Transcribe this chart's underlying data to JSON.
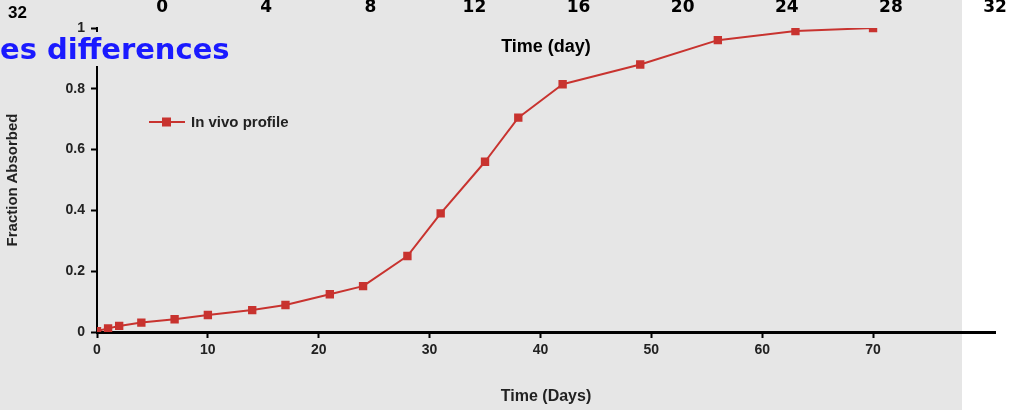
{
  "chart_data": {
    "type": "line",
    "title": "es differences",
    "xlabel": "Time (Days)",
    "ylabel": "Fraction Absorbed",
    "x2label": "Time (day)",
    "annotations": [
      "32"
    ],
    "x": [
      0,
      1,
      2,
      4,
      7,
      10,
      14,
      17,
      21,
      24,
      28,
      31,
      35,
      38,
      42,
      49,
      56,
      63,
      70
    ],
    "series": [
      {
        "name": "In vivo profile",
        "color": "#c8332f",
        "values": [
          0.003,
          0.012,
          0.02,
          0.031,
          0.042,
          0.056,
          0.072,
          0.089,
          0.124,
          0.151,
          0.25,
          0.39,
          0.56,
          0.705,
          0.815,
          0.88,
          0.96,
          0.99,
          1.0
        ]
      }
    ],
    "xlim": [
      0,
      81
    ],
    "xticks": [
      0,
      10,
      20,
      30,
      40,
      50,
      60,
      70
    ],
    "ylim": [
      0,
      1
    ],
    "yticks": [
      0,
      0.2,
      0.4,
      0.6,
      0.8,
      1
    ],
    "x2lim": [
      -2.5,
      32
    ],
    "x2ticks": [
      0,
      4,
      8,
      12,
      16,
      20,
      24,
      28,
      32
    ],
    "legend": "top left",
    "marker": "square",
    "line_style": "solid",
    "grid": false
  }
}
